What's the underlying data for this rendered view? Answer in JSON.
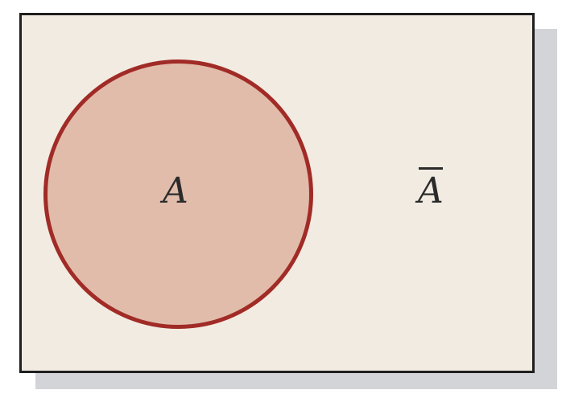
{
  "diagram": {
    "set_label": "A",
    "complement_label": "A",
    "colors": {
      "universe_fill": "#f2ebe2",
      "universe_border": "#1f1f1f",
      "circle_fill": "#e1bcab",
      "circle_border": "#a12b26",
      "shadow": "#d2d4d8"
    }
  }
}
